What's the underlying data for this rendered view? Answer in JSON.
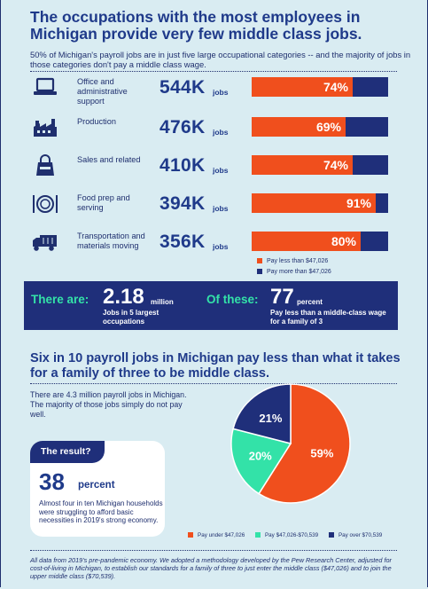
{
  "title": "The occupations with the most employees in Michigan provide very few middle class jobs.",
  "subtitle": "50% of Michigan's payroll jobs are in just five large occupational categories -- and the majority of jobs in those categories don't pay a middle class wage.",
  "jobs_unit": "jobs",
  "colors": {
    "under": "#f04f1d",
    "over": "#1f2f7a",
    "middle": "#33e2a8"
  },
  "chart_data": [
    {
      "type": "bar",
      "categories": [
        "Office and administrative support",
        "Production",
        "Sales and related",
        "Food prep and serving",
        "Transportation and materials moving"
      ],
      "jobs_label": [
        "544K",
        "476K",
        "410K",
        "394K",
        "356K"
      ],
      "jobs": [
        544000,
        476000,
        410000,
        394000,
        356000
      ],
      "series": [
        {
          "name": "Pay less than $47,026",
          "values": [
            74,
            69,
            74,
            91,
            80
          ]
        },
        {
          "name": "Pay more than $47,026",
          "values": [
            26,
            31,
            26,
            9,
            20
          ]
        }
      ],
      "pct_labels": [
        "74%",
        "69%",
        "74%",
        "91%",
        "80%"
      ],
      "icons": [
        "laptop-icon",
        "factory-icon",
        "shopping-bag-icon",
        "plate-fork-knife-icon",
        "delivery-truck-icon"
      ]
    },
    {
      "type": "pie",
      "categories": [
        "Pay under $47,026",
        "Pay $47,026-$70,539",
        "Pay over $70,539"
      ],
      "values": [
        59,
        20,
        21
      ],
      "labels": [
        "59%",
        "20%",
        "21%"
      ]
    }
  ],
  "band": {
    "left_lead": "There are:",
    "left_big": "2.18",
    "left_small": "million",
    "left_caption": "Jobs in 5 largest occupations",
    "right_lead": "Of these:",
    "right_big": "77",
    "right_small": "percent",
    "right_caption": "Pay less than a middle-class wage for a family of 3"
  },
  "section2_title": "Six in 10 payroll jobs in Michigan pay less than what it takes for a family of three to be middle class.",
  "intro": "There are 4.3 million payroll jobs in Michigan. The majority of those jobs simply do not pay well.",
  "result": {
    "tab": "The result?",
    "num": "38",
    "unit": "percent",
    "text": "Almost four in ten Michigan households were struggling to afford basic necessities in 2019's strong economy."
  },
  "footnote": "All data from 2019's pre-pandemic economy. We adopted a methodology developed by the Pew Research Center, adjusted for cost-of-living in Michigan, to establish our standards for a family of three to just enter the middle class ($47,026) and to join the upper middle class ($70,539)."
}
